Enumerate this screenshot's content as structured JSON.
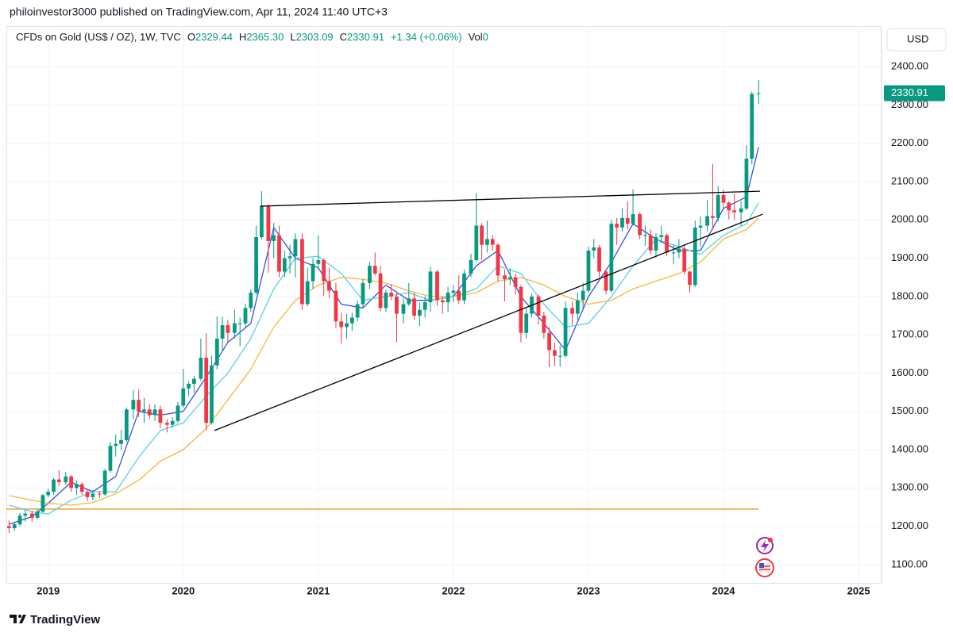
{
  "header": {
    "published": "philoinvestor3000 published on TradingView.com, Apr 11, 2024 11:40 UTC+3",
    "symbol": "CFDs on Gold (US$ / OZ), 1W, TVC",
    "o_label": "O",
    "open": "2329.44",
    "h_label": "H",
    "high": "2365.30",
    "l_label": "L",
    "low": "2303.09",
    "c_label": "C",
    "close": "2330.91",
    "change": "+1.34 (+0.06%)",
    "vol_label": "Vol",
    "volume": "0"
  },
  "currency": "USD",
  "footer": "TradingView",
  "chart_data": {
    "type": "candlestick",
    "up_color": "#089981",
    "down_color": "#f23645",
    "grid": true,
    "xlim": [
      2018.69,
      2025.17
    ],
    "xticks": [
      2019,
      2020,
      2021,
      2022,
      2023,
      2024,
      2025
    ],
    "ylim": [
      1052,
      2506
    ],
    "yticks": [
      {
        "value": 1100,
        "label": "1100.00"
      },
      {
        "value": 1200,
        "label": "1200.00"
      },
      {
        "value": 1300,
        "label": "1300.00"
      },
      {
        "value": 1400,
        "label": "1400.00"
      },
      {
        "value": 1500,
        "label": "1500.00"
      },
      {
        "value": 1600,
        "label": "1600.00"
      },
      {
        "value": 1700,
        "label": "1700.00"
      },
      {
        "value": 1800,
        "label": "1800.00"
      },
      {
        "value": 1900,
        "label": "1900.00"
      },
      {
        "value": 2000,
        "label": "2000.00"
      },
      {
        "value": 2100,
        "label": "2100.00"
      },
      {
        "value": 2200,
        "label": "2200.00"
      },
      {
        "value": 2300,
        "label": "2300.00"
      },
      {
        "value": 2400,
        "label": "2400.00"
      }
    ],
    "x": [
      2018.71,
      2018.75,
      2018.79,
      2018.83,
      2018.88,
      2018.92,
      2018.96,
      2019,
      2019.04,
      2019.08,
      2019.13,
      2019.17,
      2019.21,
      2019.25,
      2019.29,
      2019.33,
      2019.38,
      2019.42,
      2019.46,
      2019.5,
      2019.54,
      2019.58,
      2019.63,
      2019.67,
      2019.71,
      2019.75,
      2019.79,
      2019.83,
      2019.88,
      2019.92,
      2019.96,
      2020,
      2020.04,
      2020.08,
      2020.13,
      2020.17,
      2020.21,
      2020.25,
      2020.29,
      2020.33,
      2020.38,
      2020.42,
      2020.46,
      2020.5,
      2020.54,
      2020.58,
      2020.63,
      2020.67,
      2020.71,
      2020.75,
      2020.79,
      2020.83,
      2020.88,
      2020.92,
      2020.96,
      2021,
      2021.04,
      2021.08,
      2021.13,
      2021.17,
      2021.21,
      2021.25,
      2021.29,
      2021.33,
      2021.38,
      2021.42,
      2021.46,
      2021.5,
      2021.54,
      2021.58,
      2021.63,
      2021.67,
      2021.71,
      2021.75,
      2021.79,
      2021.83,
      2021.88,
      2021.92,
      2021.96,
      2022,
      2022.04,
      2022.08,
      2022.13,
      2022.17,
      2022.21,
      2022.25,
      2022.29,
      2022.33,
      2022.38,
      2022.42,
      2022.46,
      2022.5,
      2022.54,
      2022.58,
      2022.63,
      2022.67,
      2022.71,
      2022.75,
      2022.79,
      2022.83,
      2022.88,
      2022.92,
      2022.96,
      2023,
      2023.04,
      2023.08,
      2023.13,
      2023.17,
      2023.21,
      2023.25,
      2023.29,
      2023.33,
      2023.38,
      2023.42,
      2023.46,
      2023.5,
      2023.54,
      2023.58,
      2023.63,
      2023.67,
      2023.71,
      2023.75,
      2023.79,
      2023.83,
      2023.88,
      2023.92,
      2023.96,
      2024,
      2024.04,
      2024.08,
      2024.13,
      2024.17,
      2024.21,
      2024.26
    ],
    "ohlc": [
      [
        1200,
        1215,
        1182,
        1195
      ],
      [
        1195,
        1212,
        1188,
        1205
      ],
      [
        1205,
        1235,
        1200,
        1228
      ],
      [
        1228,
        1243,
        1212,
        1233
      ],
      [
        1233,
        1240,
        1211,
        1222
      ],
      [
        1222,
        1245,
        1218,
        1238
      ],
      [
        1238,
        1284,
        1236,
        1281
      ],
      [
        1281,
        1298,
        1276,
        1290
      ],
      [
        1290,
        1326,
        1282,
        1322
      ],
      [
        1322,
        1346,
        1305,
        1315
      ],
      [
        1315,
        1342,
        1308,
        1330
      ],
      [
        1330,
        1334,
        1290,
        1300
      ],
      [
        1300,
        1320,
        1282,
        1310
      ],
      [
        1310,
        1315,
        1282,
        1290
      ],
      [
        1290,
        1295,
        1266,
        1276
      ],
      [
        1276,
        1295,
        1268,
        1285
      ],
      [
        1285,
        1292,
        1274,
        1283
      ],
      [
        1283,
        1350,
        1280,
        1345
      ],
      [
        1345,
        1420,
        1340,
        1410
      ],
      [
        1410,
        1439,
        1382,
        1415
      ],
      [
        1415,
        1452,
        1400,
        1425
      ],
      [
        1425,
        1510,
        1420,
        1505
      ],
      [
        1505,
        1556,
        1480,
        1530
      ],
      [
        1530,
        1557,
        1485,
        1500
      ],
      [
        1500,
        1535,
        1470,
        1505
      ],
      [
        1505,
        1520,
        1480,
        1490
      ],
      [
        1490,
        1518,
        1475,
        1505
      ],
      [
        1505,
        1515,
        1455,
        1470
      ],
      [
        1470,
        1480,
        1445,
        1465
      ],
      [
        1465,
        1485,
        1458,
        1475
      ],
      [
        1475,
        1525,
        1470,
        1515
      ],
      [
        1515,
        1611,
        1510,
        1560
      ],
      [
        1560,
        1578,
        1540,
        1572
      ],
      [
        1572,
        1592,
        1548,
        1585
      ],
      [
        1585,
        1690,
        1580,
        1640
      ],
      [
        1640,
        1704,
        1451,
        1470
      ],
      [
        1470,
        1645,
        1465,
        1620
      ],
      [
        1620,
        1748,
        1610,
        1690
      ],
      [
        1690,
        1747,
        1660,
        1725
      ],
      [
        1725,
        1739,
        1680,
        1705
      ],
      [
        1705,
        1765,
        1690,
        1730
      ],
      [
        1730,
        1745,
        1670,
        1730
      ],
      [
        1730,
        1780,
        1718,
        1770
      ],
      [
        1770,
        1818,
        1760,
        1810
      ],
      [
        1810,
        1985,
        1805,
        1955
      ],
      [
        1955,
        2075,
        1950,
        2035
      ],
      [
        2035,
        2040,
        1862,
        1945
      ],
      [
        1945,
        1992,
        1900,
        1960
      ],
      [
        1960,
        1985,
        1850,
        1865
      ],
      [
        1865,
        1920,
        1850,
        1900
      ],
      [
        1900,
        1935,
        1860,
        1905
      ],
      [
        1905,
        1965,
        1850,
        1950
      ],
      [
        1950,
        1965,
        1765,
        1780
      ],
      [
        1780,
        1875,
        1775,
        1840
      ],
      [
        1840,
        1900,
        1820,
        1885
      ],
      [
        1885,
        1960,
        1870,
        1895
      ],
      [
        1895,
        1900,
        1802,
        1840
      ],
      [
        1840,
        1875,
        1795,
        1815
      ],
      [
        1815,
        1835,
        1718,
        1735
      ],
      [
        1735,
        1758,
        1677,
        1720
      ],
      [
        1720,
        1755,
        1690,
        1730
      ],
      [
        1730,
        1758,
        1710,
        1745
      ],
      [
        1745,
        1790,
        1735,
        1780
      ],
      [
        1780,
        1845,
        1770,
        1835
      ],
      [
        1835,
        1890,
        1820,
        1880
      ],
      [
        1880,
        1915,
        1855,
        1860
      ],
      [
        1860,
        1880,
        1762,
        1770
      ],
      [
        1770,
        1818,
        1760,
        1810
      ],
      [
        1810,
        1833,
        1790,
        1800
      ],
      [
        1800,
        1808,
        1680,
        1755
      ],
      [
        1755,
        1795,
        1730,
        1780
      ],
      [
        1780,
        1835,
        1775,
        1795
      ],
      [
        1795,
        1810,
        1740,
        1750
      ],
      [
        1750,
        1785,
        1722,
        1765
      ],
      [
        1765,
        1800,
        1745,
        1785
      ],
      [
        1785,
        1878,
        1760,
        1865
      ],
      [
        1865,
        1870,
        1775,
        1790
      ],
      [
        1790,
        1800,
        1755,
        1785
      ],
      [
        1785,
        1825,
        1760,
        1810
      ],
      [
        1810,
        1830,
        1785,
        1815
      ],
      [
        1815,
        1855,
        1780,
        1790
      ],
      [
        1790,
        1870,
        1780,
        1860
      ],
      [
        1860,
        1912,
        1850,
        1895
      ],
      [
        1895,
        2070,
        1890,
        1985
      ],
      [
        1985,
        1992,
        1895,
        1935
      ],
      [
        1935,
        1998,
        1915,
        1950
      ],
      [
        1950,
        1960,
        1920,
        1935
      ],
      [
        1935,
        1940,
        1840,
        1855
      ],
      [
        1855,
        1870,
        1787,
        1845
      ],
      [
        1845,
        1875,
        1830,
        1850
      ],
      [
        1850,
        1860,
        1805,
        1825
      ],
      [
        1825,
        1830,
        1680,
        1705
      ],
      [
        1705,
        1770,
        1690,
        1755
      ],
      [
        1755,
        1807,
        1745,
        1800
      ],
      [
        1800,
        1805,
        1727,
        1750
      ],
      [
        1750,
        1760,
        1690,
        1705
      ],
      [
        1705,
        1720,
        1615,
        1660
      ],
      [
        1660,
        1680,
        1618,
        1645
      ],
      [
        1645,
        1672,
        1617,
        1645
      ],
      [
        1645,
        1787,
        1640,
        1770
      ],
      [
        1770,
        1787,
        1725,
        1755
      ],
      [
        1755,
        1810,
        1740,
        1790
      ],
      [
        1790,
        1835,
        1770,
        1815
      ],
      [
        1815,
        1930,
        1810,
        1920
      ],
      [
        1920,
        1950,
        1900,
        1928
      ],
      [
        1928,
        1935,
        1850,
        1865
      ],
      [
        1865,
        1870,
        1805,
        1815
      ],
      [
        1815,
        2000,
        1810,
        1990
      ],
      [
        1990,
        2005,
        1935,
        1980
      ],
      [
        1980,
        2030,
        1970,
        2005
      ],
      [
        2005,
        2048,
        1975,
        1990
      ],
      [
        1990,
        2080,
        1985,
        2015
      ],
      [
        2015,
        2020,
        1950,
        1960
      ],
      [
        1960,
        1985,
        1932,
        1960
      ],
      [
        1960,
        1975,
        1910,
        1920
      ],
      [
        1920,
        1965,
        1902,
        1955
      ],
      [
        1955,
        1985,
        1940,
        1960
      ],
      [
        1960,
        1965,
        1905,
        1915
      ],
      [
        1915,
        1935,
        1884,
        1915
      ],
      [
        1915,
        1950,
        1900,
        1925
      ],
      [
        1925,
        1935,
        1857,
        1865
      ],
      [
        1865,
        1868,
        1810,
        1830
      ],
      [
        1830,
        1998,
        1825,
        1980
      ],
      [
        1980,
        2009,
        1930,
        1985
      ],
      [
        1985,
        2052,
        1970,
        2010
      ],
      [
        2010,
        2146,
        1975,
        2005
      ],
      [
        2005,
        2088,
        1995,
        2065
      ],
      [
        2065,
        2079,
        2030,
        2045
      ],
      [
        2045,
        2050,
        2002,
        2025
      ],
      [
        2025,
        2068,
        2000,
        2020
      ],
      [
        2020,
        2048,
        1985,
        2030
      ],
      [
        2030,
        2195,
        2025,
        2160
      ],
      [
        2160,
        2335,
        2145,
        2329
      ],
      [
        2329.44,
        2365.3,
        2303.09,
        2330.91
      ]
    ],
    "ma_x": [
      2018.71,
      2018.88,
      2019,
      2019.17,
      2019.33,
      2019.5,
      2019.67,
      2019.83,
      2020,
      2020.17,
      2020.33,
      2020.5,
      2020.67,
      2020.83,
      2021,
      2021.17,
      2021.33,
      2021.5,
      2021.67,
      2021.83,
      2022,
      2022.17,
      2022.33,
      2022.5,
      2022.67,
      2022.83,
      2023,
      2023.17,
      2023.33,
      2023.5,
      2023.67,
      2023.83,
      2024,
      2024.17,
      2024.26
    ],
    "overlays": [
      {
        "color": "#3b4fe0",
        "values": [
          1205,
          1225,
          1260,
          1315,
          1290,
          1330,
          1500,
          1490,
          1500,
          1590,
          1680,
          1730,
          1980,
          1900,
          1875,
          1780,
          1770,
          1830,
          1790,
          1790,
          1800,
          1880,
          1920,
          1800,
          1730,
          1660,
          1800,
          1890,
          1990,
          1950,
          1920,
          1920,
          2030,
          2060,
          2190
        ]
      },
      {
        "color": "#5ccfe6",
        "values": [
          1255,
          1238,
          1232,
          1268,
          1290,
          1290,
          1380,
          1450,
          1470,
          1540,
          1600,
          1690,
          1820,
          1900,
          1905,
          1860,
          1790,
          1800,
          1810,
          1790,
          1800,
          1820,
          1880,
          1860,
          1780,
          1720,
          1730,
          1800,
          1880,
          1950,
          1930,
          1910,
          1960,
          1990,
          2045
        ]
      },
      {
        "color": "#f5b93a",
        "values": [
          1280,
          1268,
          1260,
          1255,
          1262,
          1285,
          1320,
          1370,
          1400,
          1455,
          1530,
          1610,
          1720,
          1790,
          1830,
          1850,
          1845,
          1835,
          1815,
          1800,
          1800,
          1810,
          1840,
          1850,
          1830,
          1800,
          1780,
          1790,
          1820,
          1840,
          1860,
          1890,
          1950,
          1975,
          2005
        ]
      }
    ],
    "hline": {
      "value": 1245,
      "color": "#f29d38",
      "x": [
        2018.69,
        2024.26
      ]
    },
    "trendlines": [
      {
        "color": "#000000",
        "x": [
          2020.57,
          2024.27
        ],
        "y": [
          2036,
          2075
        ]
      },
      {
        "color": "#000000",
        "x": [
          2020.23,
          2024.29
        ],
        "y": [
          1450,
          2015
        ]
      }
    ]
  }
}
